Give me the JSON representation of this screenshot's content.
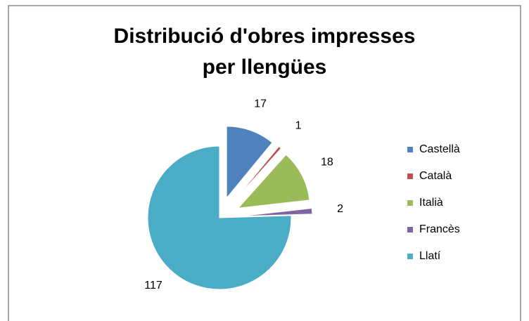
{
  "chart_data": {
    "type": "pie",
    "title": "Distribució d'obres impresses per llengües",
    "categories": [
      "Castellà",
      "Català",
      "Italià",
      "Francès",
      "Llatí"
    ],
    "values": [
      17,
      1,
      18,
      2,
      117
    ],
    "colors": [
      "#4f81bd",
      "#c0504d",
      "#9bbb59",
      "#8064a2",
      "#4bacc6"
    ],
    "legend": "right"
  }
}
